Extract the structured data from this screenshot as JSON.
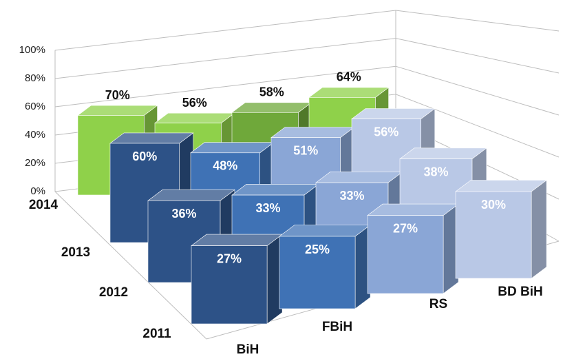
{
  "chart_data": {
    "type": "bar3d",
    "categories": [
      "BiH",
      "FBiH",
      "RS",
      "BD BiH"
    ],
    "series": [
      {
        "name": "2014",
        "colors": [
          "#8fd14a",
          "#8fd14a",
          "#6fa83a",
          "#8fd14a"
        ],
        "values": [
          70,
          56,
          58,
          64
        ],
        "value_labels": [
          "70%",
          "56%",
          "58%",
          "64%"
        ]
      },
      {
        "name": "2013",
        "colors": [
          "#2d5287",
          "#3f72b5",
          "#8aa6d6",
          "#b9c8e6"
        ],
        "values": [
          60,
          48,
          51,
          56
        ],
        "value_labels": [
          "60%",
          "48%",
          "51%",
          "56%"
        ]
      },
      {
        "name": "2012",
        "colors": [
          "#2d5287",
          "#3f72b5",
          "#8aa6d6",
          "#b9c8e6"
        ],
        "values": [
          36,
          33,
          33,
          38
        ],
        "value_labels": [
          "36%",
          "33%",
          "33%",
          "38%"
        ]
      },
      {
        "name": "2011",
        "colors": [
          "#2d5287",
          "#3f72b5",
          "#8aa6d6",
          "#b9c8e6"
        ],
        "values": [
          27,
          25,
          27,
          30
        ],
        "value_labels": [
          "27%",
          "25%",
          "27%",
          "30%"
        ]
      }
    ],
    "ylim": [
      0,
      100
    ],
    "yticks": [
      {
        "value": 0,
        "label": "0%"
      },
      {
        "value": 20,
        "label": "20%"
      },
      {
        "value": 40,
        "label": "40%"
      },
      {
        "value": 60,
        "label": "60%"
      },
      {
        "value": 80,
        "label": "80%"
      },
      {
        "value": 100,
        "label": "100%"
      }
    ],
    "grid": true
  }
}
